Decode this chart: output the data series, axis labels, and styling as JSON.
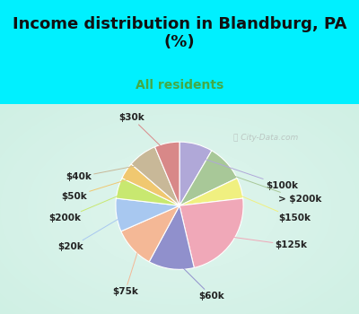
{
  "title": "Income distribution in Blandburg, PA\n(%)",
  "subtitle": "All residents",
  "watermark": "ⓘ City-Data.com",
  "labels": [
    "$100k",
    "> $200k",
    "$150k",
    "$125k",
    "$60k",
    "$75k",
    "$20k",
    "$200k",
    "$50k",
    "$40k",
    "$30k"
  ],
  "values": [
    8,
    9,
    5,
    22,
    11,
    10,
    8,
    5,
    4,
    7,
    6
  ],
  "colors": [
    "#b0a8d8",
    "#a8c898",
    "#f0f080",
    "#f0a8b8",
    "#9090cc",
    "#f4b896",
    "#a8c8f0",
    "#c8e870",
    "#f0c870",
    "#c8b898",
    "#d88888"
  ],
  "bg_color_top": "#00f0ff",
  "bg_color_chart_center": "#e0f5ee",
  "bg_color_chart_edge": "#c8eee0",
  "startangle": 90,
  "label_fontsize": 7.5,
  "title_fontsize": 13,
  "subtitle_fontsize": 10,
  "subtitle_color": "#44aa44",
  "title_color": "#111111",
  "watermark_color": "#aaaaaa"
}
